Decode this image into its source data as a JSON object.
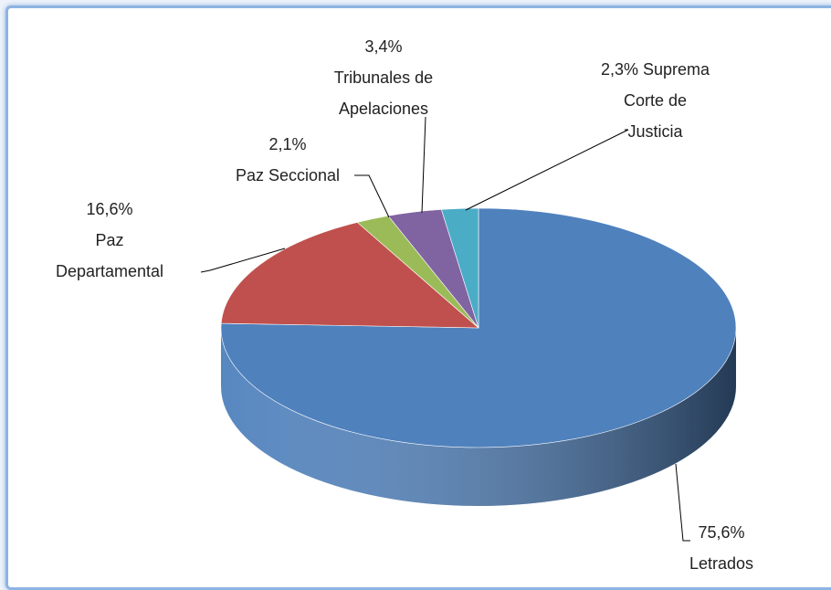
{
  "chart_data": {
    "type": "pie",
    "categories": [
      "Letrados",
      "Paz Departamental",
      "Paz Seccional",
      "Tribunales de Apelaciones",
      "Suprema Corte de Justicia"
    ],
    "values": [
      75.6,
      16.6,
      2.1,
      3.4,
      2.3
    ],
    "value_labels": [
      "75,6%",
      "16,6%",
      "2,1%",
      "3,4%",
      "2,3%"
    ],
    "colors": [
      "#4f81bd",
      "#c0504d",
      "#9bbb59",
      "#8064a2",
      "#4bacc6"
    ]
  }
}
